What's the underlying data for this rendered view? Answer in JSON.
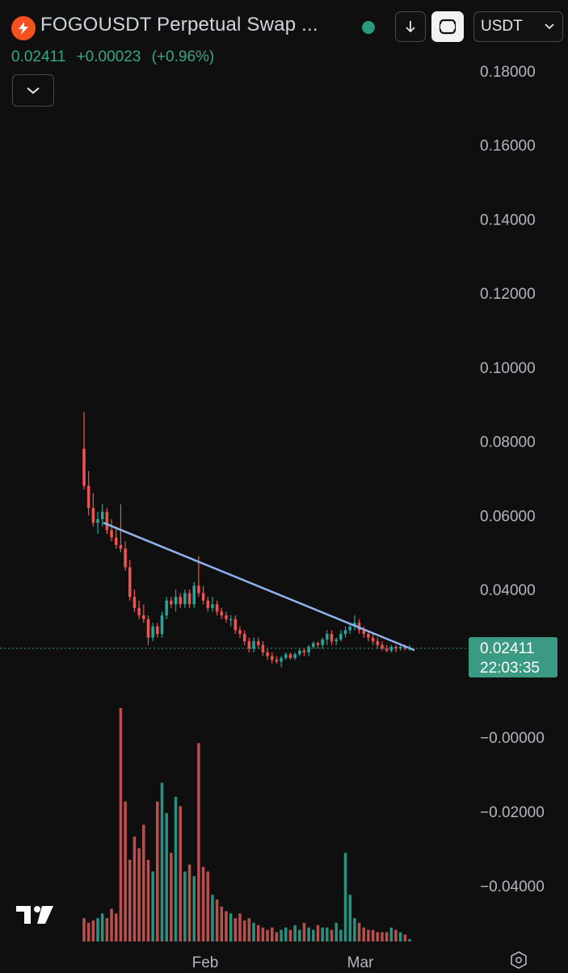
{
  "header": {
    "brand_icon": "fogo-flame-icon",
    "title": "FOGOUSDT Perpetual Swap ...",
    "currency": "USDT",
    "price": "0.02411",
    "change": "+0.00023",
    "change_pct": "(+0.96%)",
    "accent_up": "#26a69a",
    "accent_down": "#ef5350"
  },
  "price_badge": {
    "price": "0.02411",
    "countdown": "22:03:35",
    "color": "#3a9b82"
  },
  "chart_data": {
    "type": "candlestick",
    "y_axis_ticks": [
      "0.18000",
      "0.16000",
      "0.14000",
      "0.12000",
      "0.10000",
      "0.08000",
      "0.06000",
      "0.04000"
    ],
    "y_axis_ticks_lower": [
      "−0.00000",
      "−0.02000",
      "−0.04000"
    ],
    "ylim": [
      0.02,
      0.185
    ],
    "x_axis_ticks": [
      "Feb",
      "Mar"
    ],
    "last_price": 0.02411,
    "trendline": {
      "start": 0.058,
      "end": 0.0236
    },
    "candles": [
      [
        0.078,
        0.088,
        0.067,
        0.068
      ],
      [
        0.068,
        0.072,
        0.06,
        0.062
      ],
      [
        0.062,
        0.066,
        0.057,
        0.058
      ],
      [
        0.058,
        0.061,
        0.055,
        0.059
      ],
      [
        0.059,
        0.063,
        0.057,
        0.061
      ],
      [
        0.061,
        0.062,
        0.055,
        0.056
      ],
      [
        0.056,
        0.059,
        0.053,
        0.054
      ],
      [
        0.054,
        0.057,
        0.051,
        0.052
      ],
      [
        0.052,
        0.063,
        0.05,
        0.051
      ],
      [
        0.051,
        0.053,
        0.045,
        0.046
      ],
      [
        0.046,
        0.048,
        0.037,
        0.038
      ],
      [
        0.038,
        0.04,
        0.034,
        0.035
      ],
      [
        0.035,
        0.037,
        0.032,
        0.033
      ],
      [
        0.033,
        0.036,
        0.031,
        0.032
      ],
      [
        0.032,
        0.033,
        0.025,
        0.027
      ],
      [
        0.027,
        0.031,
        0.026,
        0.03
      ],
      [
        0.03,
        0.031,
        0.027,
        0.028
      ],
      [
        0.028,
        0.034,
        0.027,
        0.033
      ],
      [
        0.033,
        0.038,
        0.032,
        0.037
      ],
      [
        0.037,
        0.038,
        0.035,
        0.036
      ],
      [
        0.036,
        0.04,
        0.034,
        0.038
      ],
      [
        0.038,
        0.039,
        0.035,
        0.036
      ],
      [
        0.036,
        0.04,
        0.035,
        0.039
      ],
      [
        0.039,
        0.04,
        0.035,
        0.036
      ],
      [
        0.036,
        0.042,
        0.035,
        0.041
      ],
      [
        0.041,
        0.049,
        0.038,
        0.039
      ],
      [
        0.039,
        0.041,
        0.036,
        0.037
      ],
      [
        0.037,
        0.038,
        0.034,
        0.035
      ],
      [
        0.035,
        0.038,
        0.034,
        0.036
      ],
      [
        0.036,
        0.037,
        0.033,
        0.034
      ],
      [
        0.034,
        0.035,
        0.032,
        0.033
      ],
      [
        0.033,
        0.034,
        0.031,
        0.032
      ],
      [
        0.032,
        0.033,
        0.03,
        0.032
      ],
      [
        0.032,
        0.033,
        0.028,
        0.029
      ],
      [
        0.029,
        0.03,
        0.027,
        0.028
      ],
      [
        0.028,
        0.029,
        0.025,
        0.026
      ],
      [
        0.026,
        0.027,
        0.023,
        0.024
      ],
      [
        0.024,
        0.027,
        0.023,
        0.026
      ],
      [
        0.026,
        0.027,
        0.024,
        0.025
      ],
      [
        0.025,
        0.026,
        0.022,
        0.023
      ],
      [
        0.023,
        0.024,
        0.021,
        0.022
      ],
      [
        0.022,
        0.023,
        0.02,
        0.021
      ],
      [
        0.021,
        0.022,
        0.02,
        0.0205
      ],
      [
        0.0205,
        0.022,
        0.019,
        0.0215
      ],
      [
        0.0215,
        0.023,
        0.021,
        0.0225
      ],
      [
        0.0225,
        0.023,
        0.021,
        0.0215
      ],
      [
        0.0215,
        0.023,
        0.021,
        0.0225
      ],
      [
        0.0225,
        0.024,
        0.022,
        0.0235
      ],
      [
        0.0235,
        0.024,
        0.022,
        0.023
      ],
      [
        0.023,
        0.025,
        0.022,
        0.0245
      ],
      [
        0.0245,
        0.026,
        0.024,
        0.0255
      ],
      [
        0.0255,
        0.026,
        0.024,
        0.025
      ],
      [
        0.025,
        0.027,
        0.024,
        0.0265
      ],
      [
        0.0265,
        0.029,
        0.025,
        0.028
      ],
      [
        0.028,
        0.029,
        0.025,
        0.026
      ],
      [
        0.026,
        0.027,
        0.025,
        0.0265
      ],
      [
        0.0265,
        0.029,
        0.026,
        0.028
      ],
      [
        0.028,
        0.03,
        0.027,
        0.029
      ],
      [
        0.029,
        0.031,
        0.028,
        0.03
      ],
      [
        0.03,
        0.033,
        0.029,
        0.031
      ],
      [
        0.031,
        0.032,
        0.028,
        0.029
      ],
      [
        0.029,
        0.03,
        0.027,
        0.028
      ],
      [
        0.028,
        0.029,
        0.026,
        0.027
      ],
      [
        0.027,
        0.028,
        0.025,
        0.026
      ],
      [
        0.026,
        0.027,
        0.024,
        0.025
      ],
      [
        0.025,
        0.026,
        0.0235,
        0.024
      ],
      [
        0.024,
        0.025,
        0.023,
        0.0235
      ],
      [
        0.0235,
        0.025,
        0.023,
        0.0245
      ],
      [
        0.0245,
        0.025,
        0.023,
        0.024
      ],
      [
        0.024,
        0.025,
        0.0235,
        0.0245
      ],
      [
        0.0245,
        0.025,
        0.0235,
        0.024
      ],
      [
        0.024,
        0.025,
        0.0235,
        0.0241
      ]
    ],
    "volume": [
      0.1,
      0.08,
      0.09,
      0.1,
      0.12,
      0.1,
      0.14,
      0.12,
      1.0,
      0.6,
      0.35,
      0.45,
      0.4,
      0.5,
      0.35,
      0.3,
      0.6,
      0.68,
      0.55,
      0.38,
      0.62,
      0.58,
      0.3,
      0.33,
      0.28,
      0.85,
      0.32,
      0.3,
      0.2,
      0.18,
      0.15,
      0.13,
      0.12,
      0.1,
      0.12,
      0.09,
      0.1,
      0.08,
      0.07,
      0.06,
      0.05,
      0.06,
      0.04,
      0.05,
      0.06,
      0.05,
      0.07,
      0.05,
      0.08,
      0.06,
      0.05,
      0.07,
      0.06,
      0.06,
      0.05,
      0.08,
      0.05,
      0.38,
      0.2,
      0.1,
      0.08,
      0.06,
      0.05,
      0.05,
      0.04,
      0.04,
      0.04,
      0.06,
      0.05,
      0.04,
      0.03,
      0.01
    ]
  },
  "icons": {
    "down": "arrow-down-icon",
    "fit": "fit-screen-icon",
    "dropdown": "chevron-down-icon",
    "logo": "tradingview-logo-icon",
    "settings": "settings-icon"
  }
}
